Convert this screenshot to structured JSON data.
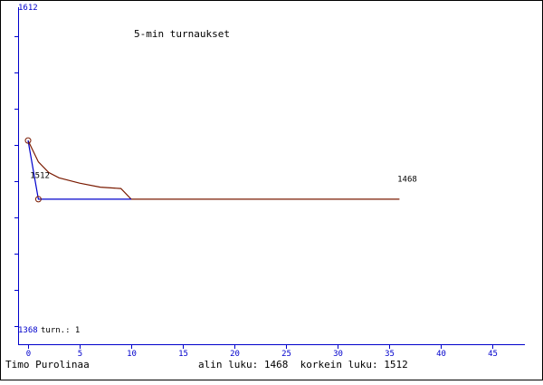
{
  "chart_data": {
    "type": "line",
    "title": "5-min turnaukset",
    "y_top_label": "1612",
    "y_bottom_label": "1368",
    "ylim": [
      1368,
      1612
    ],
    "xlim": [
      -1,
      48
    ],
    "x_ticks": [
      0,
      5,
      10,
      15,
      20,
      25,
      30,
      35,
      40,
      45
    ],
    "turn_label": "turn.: 1",
    "series": [
      {
        "key": "rating",
        "color": "#0000cc",
        "points": [
          [
            0,
            1512
          ],
          [
            1,
            1468
          ],
          [
            10,
            1468
          ]
        ]
      },
      {
        "key": "average",
        "color": "#7a1a00",
        "points": [
          [
            0,
            1512
          ],
          [
            1,
            1496
          ],
          [
            2,
            1488
          ],
          [
            3,
            1484
          ],
          [
            5,
            1480
          ],
          [
            7,
            1477
          ],
          [
            9,
            1476
          ],
          [
            10,
            1468
          ],
          [
            36,
            1468
          ]
        ]
      }
    ],
    "markers": [
      [
        0,
        1512
      ],
      [
        1,
        1468
      ]
    ],
    "annotations": [
      {
        "text": "1512",
        "x": 0.2,
        "y": 1484
      },
      {
        "text": "1468",
        "x": 35.8,
        "y": 1481
      }
    ]
  },
  "footer": {
    "player": "Timo Purolinaa",
    "stats": "alin luku: 1468  korkein luku: 1512"
  },
  "colors": {
    "axis": "#0000cc",
    "average_line": "#7a1a00",
    "rating_line": "#0000cc",
    "border": "#000000"
  }
}
